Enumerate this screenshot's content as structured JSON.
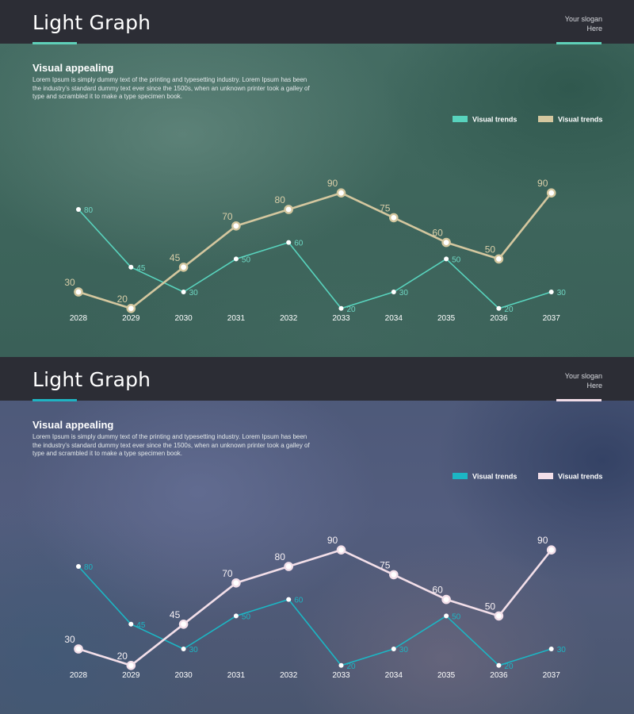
{
  "panels": [
    {
      "theme": "teal",
      "title": "Light Graph",
      "slogan_line1": "Your slogan",
      "slogan_line2": "Here",
      "subheading": "Visual appealing",
      "body": "Lorem Ipsum is simply dummy text of the printing and typesetting industry. Lorem Ipsum has been the industry's standard dummy text ever since the 1500s, when an unknown printer took a galley of type and scrambled it to make a type specimen book.",
      "colors": {
        "title_underline": "#5fd0b9",
        "slogan_underline": "#5fd0b9",
        "series_a": "#58d3bd",
        "series_b": "#d4c79f",
        "label_a": "#6fd8c4",
        "label_b": "#d9cea8"
      }
    },
    {
      "theme": "blue",
      "title": "Light Graph",
      "slogan_line1": "Your slogan",
      "slogan_line2": "Here",
      "subheading": "Visual appealing",
      "body": "Lorem Ipsum is simply dummy text of the printing and typesetting industry. Lorem Ipsum has been the industry's standard dummy text ever since the 1500s, when an unknown printer took a galley of type and scrambled it to make a type specimen book.",
      "colors": {
        "title_underline": "#1fb3c2",
        "slogan_underline": "#f1dce7",
        "series_a": "#1cb6c4",
        "series_b": "#f3dfe9",
        "label_a": "#1cb6c4",
        "label_b": "#f6f0f4"
      }
    }
  ],
  "chart_data": [
    {
      "type": "line",
      "x": [
        "2028",
        "2029",
        "2030",
        "2031",
        "2032",
        "2033",
        "2034",
        "2035",
        "2036",
        "2037"
      ],
      "series": [
        {
          "name": "Visual trends",
          "values": [
            80,
            45,
            30,
            50,
            60,
            20,
            30,
            50,
            20,
            30
          ]
        },
        {
          "name": "Visual trends",
          "values": [
            30,
            20,
            45,
            70,
            80,
            90,
            75,
            60,
            50,
            90
          ]
        }
      ],
      "data_labels": true,
      "legend": "top-right",
      "grid": false
    },
    {
      "type": "line",
      "x": [
        "2028",
        "2029",
        "2030",
        "2031",
        "2032",
        "2033",
        "2034",
        "2035",
        "2036",
        "2037"
      ],
      "series": [
        {
          "name": "Visual trends",
          "values": [
            80,
            45,
            30,
            50,
            60,
            20,
            30,
            50,
            20,
            30
          ]
        },
        {
          "name": "Visual trends",
          "values": [
            30,
            20,
            45,
            70,
            80,
            90,
            75,
            60,
            50,
            90
          ]
        }
      ],
      "data_labels": true,
      "legend": "top-right",
      "grid": false
    }
  ]
}
